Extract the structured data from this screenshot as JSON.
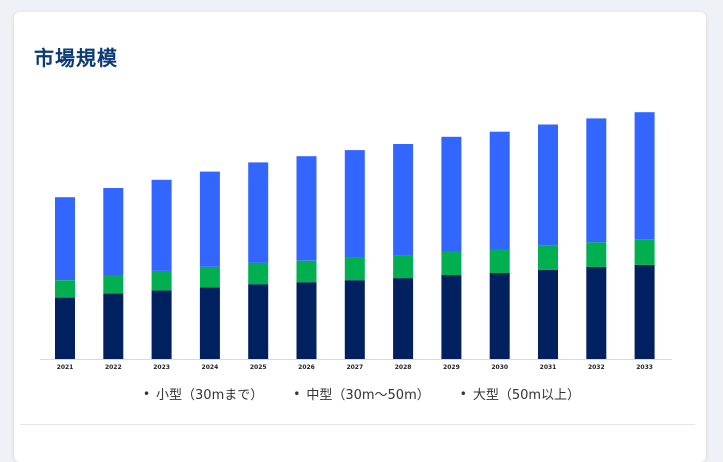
{
  "card": {
    "title": "市場規模"
  },
  "colors": {
    "title": "#0b3a78",
    "small": "#002060",
    "medium": "#00b050",
    "large": "#3366ff",
    "background": "#eef1f5"
  },
  "chart_data": {
    "type": "bar",
    "stacked": true,
    "categories": [
      "2021",
      "2022",
      "2023",
      "2024",
      "2025",
      "2026",
      "2027",
      "2028",
      "2029",
      "2030",
      "2031",
      "2032",
      "2033"
    ],
    "series": [
      {
        "name": "小型（30mまで）",
        "color": "#002060",
        "values": [
          60,
          64,
          67,
          70,
          73,
          75,
          77,
          79,
          82,
          84,
          87,
          90,
          92
        ]
      },
      {
        "name": "中型（30m〜50m）",
        "color": "#00b050",
        "values": [
          17,
          18,
          19,
          20,
          21,
          21,
          22,
          22,
          23,
          23,
          24,
          24,
          25
        ]
      },
      {
        "name": "大型（50m以上）",
        "color": "#3366ff",
        "values": [
          81,
          85,
          89,
          93,
          98,
          102,
          105,
          109,
          112,
          115,
          118,
          121,
          124
        ]
      }
    ],
    "ylim": [
      0,
      250
    ],
    "grid": false,
    "legend_position": "bottom"
  }
}
